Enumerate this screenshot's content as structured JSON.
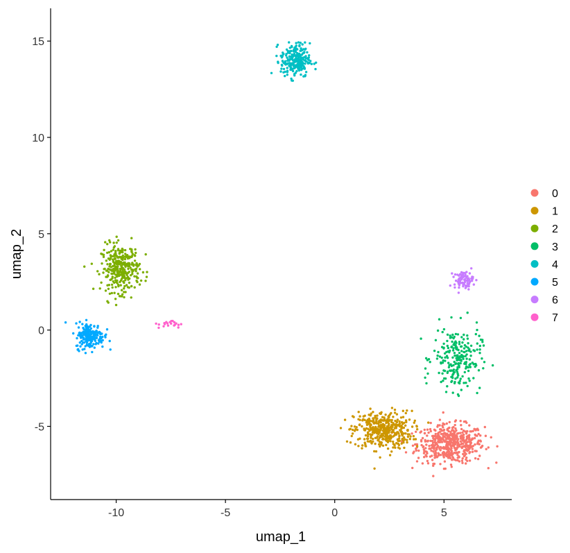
{
  "chart_data": {
    "type": "scatter",
    "title": "",
    "xlabel": "umap_1",
    "ylabel": "umap_2",
    "xlim": [
      -13,
      8.1
    ],
    "ylim": [
      -8.8,
      16.7
    ],
    "xticks": [
      -10,
      -5,
      0,
      5
    ],
    "xtick_labels": [
      "-10",
      "-5",
      "0",
      "5"
    ],
    "yticks": [
      -5,
      0,
      5,
      10,
      15
    ],
    "ytick_labels": [
      "-5",
      "0",
      "5",
      "10",
      "15"
    ],
    "grid": false,
    "legend_position": "right",
    "series": [
      {
        "name": "0",
        "color": "#F8766D",
        "center": [
          5.3,
          -5.9
        ],
        "spread": [
          1.4,
          0.9
        ],
        "count": 520
      },
      {
        "name": "1",
        "color": "#CD9600",
        "center": [
          2.2,
          -5.2
        ],
        "spread": [
          1.2,
          0.9
        ],
        "count": 420
      },
      {
        "name": "2",
        "color": "#7CAE00",
        "center": [
          -9.8,
          3.2
        ],
        "spread": [
          0.8,
          1.1
        ],
        "count": 330
      },
      {
        "name": "3",
        "color": "#00BE67",
        "center": [
          5.6,
          -1.5
        ],
        "spread": [
          1.0,
          1.5
        ],
        "count": 230
      },
      {
        "name": "4",
        "color": "#00BFC4",
        "center": [
          -1.8,
          14.0
        ],
        "spread": [
          0.6,
          0.8
        ],
        "count": 250
      },
      {
        "name": "5",
        "color": "#00A9FF",
        "center": [
          -11.2,
          -0.3
        ],
        "spread": [
          0.6,
          0.6
        ],
        "count": 200
      },
      {
        "name": "6",
        "color": "#C77CFF",
        "center": [
          5.9,
          2.6
        ],
        "spread": [
          0.4,
          0.4
        ],
        "count": 80
      },
      {
        "name": "7",
        "color": "#FF61CC",
        "center": [
          -7.5,
          0.3
        ],
        "spread": [
          0.5,
          0.2
        ],
        "count": 20
      }
    ]
  }
}
